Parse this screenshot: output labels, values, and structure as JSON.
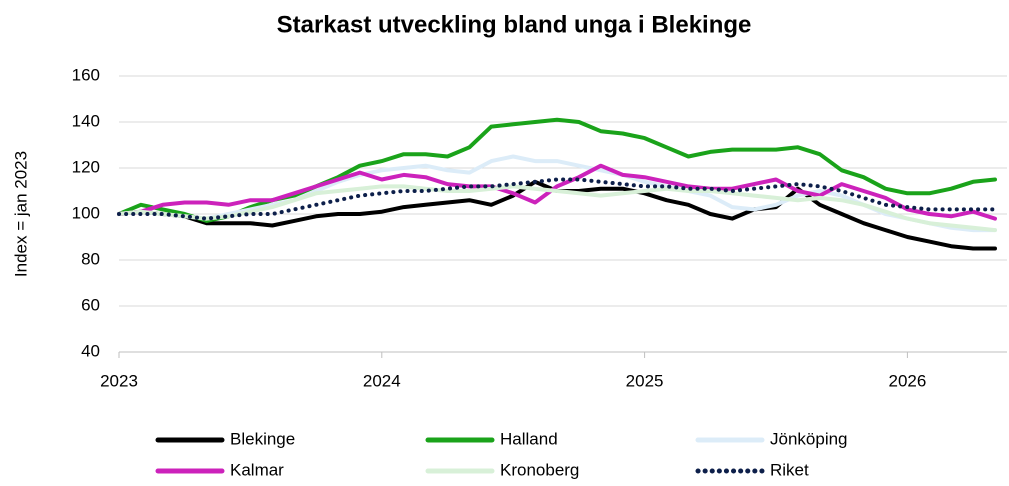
{
  "chart_data": {
    "type": "line",
    "title": "Starkast utveckling bland unga i Blekinge",
    "y_label": "Index = jan 2023",
    "categories": [
      "2023",
      null,
      null,
      null,
      null,
      null,
      null,
      null,
      null,
      null,
      null,
      null,
      "2024",
      null,
      null,
      null,
      null,
      null,
      null,
      null,
      null,
      null,
      null,
      null,
      "2025",
      null,
      null,
      null,
      null,
      null,
      null,
      null,
      null,
      null,
      null,
      null,
      "2026",
      null,
      null,
      null,
      null
    ],
    "series": [
      {
        "name": "Blekinge",
        "color": "#000000",
        "values": [
          100,
          101,
          100,
          99,
          96,
          96,
          96,
          95,
          97,
          99,
          100,
          100,
          101,
          103,
          104,
          105,
          106,
          104,
          108,
          114,
          110,
          110,
          111,
          111,
          109,
          106,
          104,
          100,
          98,
          102,
          103,
          111,
          104,
          100,
          96,
          93,
          90,
          88,
          86,
          85,
          85
        ]
      },
      {
        "name": "Halland",
        "color": "#1aa31a",
        "values": [
          100,
          104,
          102,
          100,
          97,
          99,
          103,
          106,
          108,
          112,
          116,
          121,
          123,
          126,
          126,
          125,
          129,
          138,
          139,
          140,
          141,
          140,
          136,
          135,
          133,
          129,
          125,
          127,
          128,
          128,
          128,
          129,
          126,
          119,
          116,
          111,
          109,
          109,
          111,
          114,
          115
        ]
      },
      {
        "name": "Jönköping",
        "color": "#dcecf8",
        "values": [
          100,
          101,
          100,
          99,
          98,
          100,
          102,
          104,
          106,
          110,
          114,
          117,
          119,
          120,
          121,
          119,
          118,
          123,
          125,
          123,
          123,
          121,
          119,
          117,
          114,
          112,
          110,
          108,
          103,
          102,
          104,
          108,
          110,
          108,
          104,
          100,
          98,
          96,
          94,
          93,
          93
        ]
      },
      {
        "name": "Kalmar",
        "color": "#cc22bb",
        "values": [
          100,
          101,
          104,
          105,
          105,
          104,
          106,
          106,
          109,
          112,
          115,
          118,
          115,
          117,
          116,
          113,
          112,
          112,
          109,
          105,
          112,
          116,
          121,
          117,
          116,
          114,
          112,
          111,
          111,
          113,
          115,
          110,
          108,
          113,
          110,
          107,
          102,
          100,
          99,
          101,
          98
        ]
      },
      {
        "name": "Kronoberg",
        "color": "#d8f0d8",
        "values": [
          100,
          101,
          100,
          99,
          98,
          99,
          101,
          103,
          106,
          109,
          110,
          111,
          112,
          112,
          111,
          110,
          110,
          111,
          112,
          111,
          110,
          109,
          108,
          109,
          110,
          111,
          110,
          110,
          109,
          108,
          107,
          106,
          107,
          106,
          104,
          101,
          98,
          96,
          95,
          94,
          93
        ]
      },
      {
        "name": "Riket",
        "color": "#0d1f4a",
        "dash": "dotted",
        "values": [
          100,
          100,
          100,
          99,
          98,
          99,
          100,
          100,
          102,
          104,
          106,
          108,
          109,
          110,
          110,
          111,
          112,
          112,
          113,
          114,
          115,
          115,
          114,
          113,
          112,
          112,
          111,
          111,
          110,
          111,
          112,
          113,
          112,
          110,
          107,
          104,
          103,
          102,
          102,
          102,
          102
        ]
      }
    ],
    "ylim": [
      40,
      160
    ],
    "yticks": [
      40,
      60,
      80,
      100,
      120,
      140,
      160
    ],
    "grid": true,
    "legend": "bottom"
  }
}
